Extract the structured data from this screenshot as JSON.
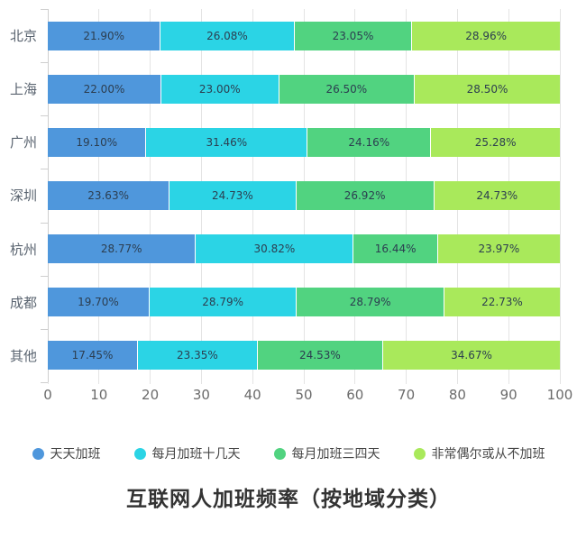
{
  "title": "互联网人加班频率（按地域分类）",
  "colors": {
    "series_blue": "#4F97DC",
    "series_cyan": "#2BD4E5",
    "series_green": "#51D380",
    "series_yellowgreen": "#A9E95B",
    "grid": "#e4e4e4",
    "axis": "#cfcfcf",
    "value_text": "#2c3e50",
    "title_text": "#333333"
  },
  "chart_data": {
    "type": "bar",
    "orientation": "horizontal",
    "stacked": true,
    "title": "互联网人加班频率（按地域分类）",
    "xlabel": "",
    "ylabel": "",
    "xlim": [
      0,
      100
    ],
    "x_ticks": [
      0,
      10,
      20,
      30,
      40,
      50,
      60,
      70,
      80,
      90,
      100
    ],
    "grid": true,
    "legend_position": "bottom",
    "categories": [
      "北京",
      "上海",
      "广州",
      "深圳",
      "杭州",
      "成都",
      "其他"
    ],
    "series": [
      {
        "name": "天天加班",
        "color": "#4F97DC",
        "values": [
          21.9,
          22.0,
          19.1,
          23.63,
          28.77,
          19.7,
          17.45
        ],
        "labels": [
          "21.90%",
          "22.00%",
          "19.10%",
          "23.63%",
          "28.77%",
          "19.70%",
          "17.45%"
        ]
      },
      {
        "name": "每月加班十几天",
        "color": "#2BD4E5",
        "values": [
          26.08,
          23.0,
          31.46,
          24.73,
          30.82,
          28.79,
          23.35
        ],
        "labels": [
          "26.08%",
          "23.00%",
          "31.46%",
          "24.73%",
          "30.82%",
          "28.79%",
          "23.35%"
        ]
      },
      {
        "name": "每月加班三四天",
        "color": "#51D380",
        "values": [
          23.05,
          26.5,
          24.16,
          26.92,
          16.44,
          28.79,
          24.53
        ],
        "labels": [
          "23.05%",
          "26.50%",
          "24.16%",
          "26.92%",
          "16.44%",
          "28.79%",
          "24.53%"
        ]
      },
      {
        "name": "非常偶尔或从不加班",
        "color": "#A9E95B",
        "values": [
          28.96,
          28.5,
          25.28,
          24.73,
          23.97,
          22.73,
          34.67
        ],
        "labels": [
          "28.96%",
          "28.50%",
          "25.28%",
          "24.73%",
          "23.97%",
          "22.73%",
          "34.67%"
        ]
      }
    ]
  }
}
